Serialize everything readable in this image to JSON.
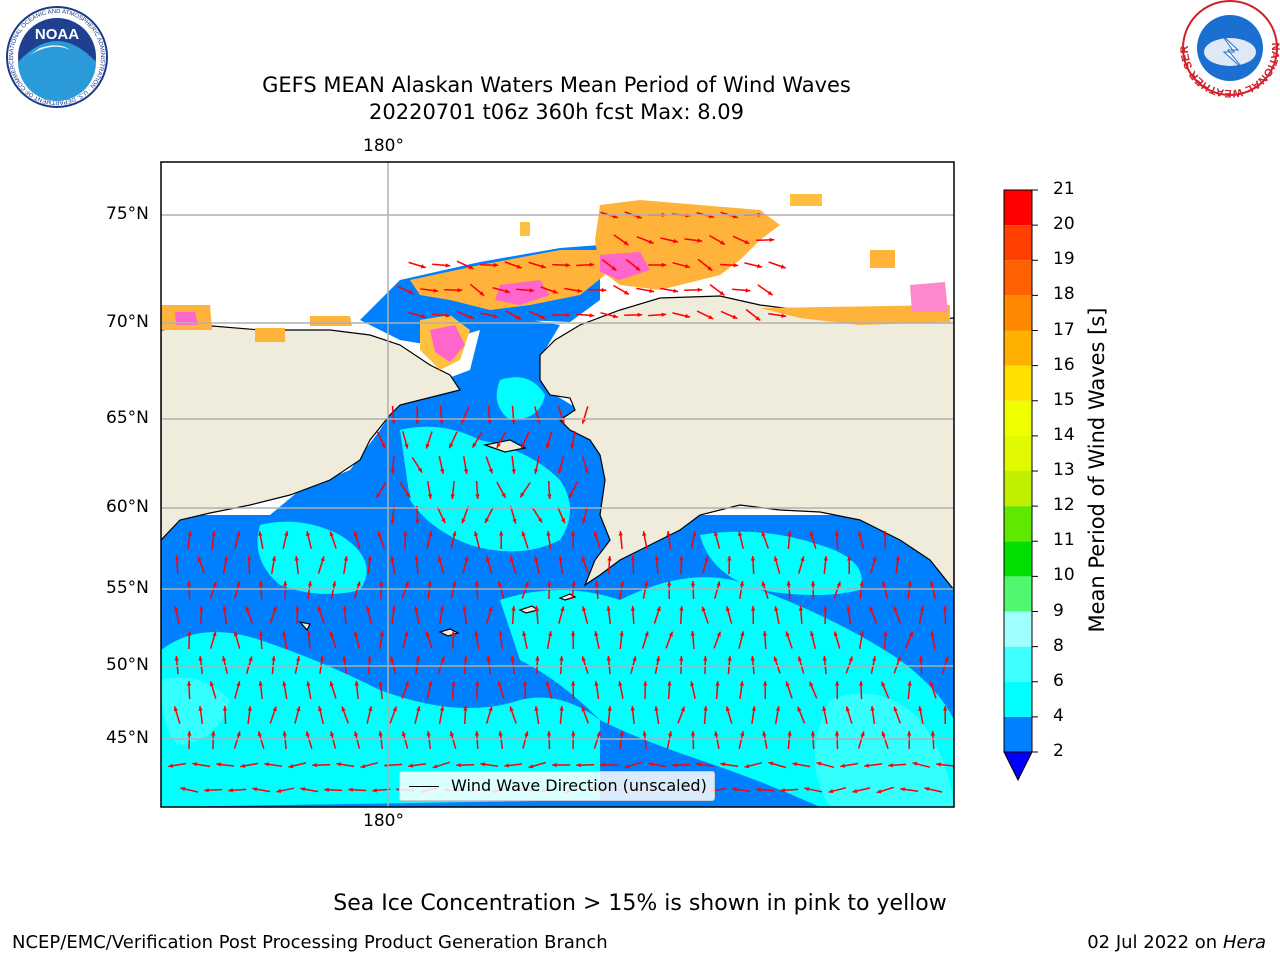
{
  "title": {
    "line1": "GEFS MEAN Alaskan Waters Mean Period of Wind Waves",
    "line2": "20220701 t06z 360h fcst   Max: 8.09"
  },
  "logos": {
    "noaa_text": "NOAA",
    "noaa_ring": "NATIONAL OCEANIC AND ATMOSPHERIC ADMINISTRATION · U.S. DEPARTMENT OF COMMERCE",
    "nws_ring": "NATIONAL WEATHER SERVICE"
  },
  "map": {
    "lon_labels": {
      "top": "180°",
      "bottom": "180°"
    },
    "lat_labels": [
      "75°N",
      "70°N",
      "65°N",
      "60°N",
      "55°N",
      "50°N",
      "45°N"
    ],
    "legend": "Wind Wave Direction (unscaled)",
    "colors": {
      "land": "#efecdb",
      "water_low": "#0080ff",
      "water_mid": "#00ffff",
      "arrow": "#ff0000",
      "ice": "#ffb020"
    }
  },
  "colorbar": {
    "label": "Mean Period of Wind Waves [s]",
    "ticks": [
      "21",
      "20",
      "19",
      "18",
      "17",
      "16",
      "15",
      "14",
      "13",
      "12",
      "11",
      "10",
      "9",
      "8",
      "6",
      "4",
      "2"
    ],
    "bins": [
      {
        "from": 2,
        "to": 4,
        "color": "#0080ff"
      },
      {
        "from": 4,
        "to": 6,
        "color": "#00ffff"
      },
      {
        "from": 6,
        "to": 8,
        "color": "#40ffff"
      },
      {
        "from": 8,
        "to": 9,
        "color": "#a0ffff"
      },
      {
        "from": 9,
        "to": 10,
        "color": "#50f870"
      },
      {
        "from": 10,
        "to": 11,
        "color": "#00e000"
      },
      {
        "from": 11,
        "to": 12,
        "color": "#60e800"
      },
      {
        "from": 12,
        "to": 13,
        "color": "#c0f000"
      },
      {
        "from": 13,
        "to": 14,
        "color": "#e0f800"
      },
      {
        "from": 14,
        "to": 15,
        "color": "#f0ff00"
      },
      {
        "from": 15,
        "to": 16,
        "color": "#ffe000"
      },
      {
        "from": 16,
        "to": 17,
        "color": "#ffb000"
      },
      {
        "from": 17,
        "to": 18,
        "color": "#ff8800"
      },
      {
        "from": 18,
        "to": 19,
        "color": "#ff6000"
      },
      {
        "from": 19,
        "to": 20,
        "color": "#ff4000"
      },
      {
        "from": 20,
        "to": 21,
        "color": "#ff0000"
      }
    ],
    "under_color": "#0000ff"
  },
  "caption": "Sea Ice Concentration > 15% is shown in pink to yellow",
  "footer": {
    "left": "NCEP/EMC/Verification Post Processing Product Generation Branch",
    "date": "02 Jul 2022 on ",
    "machine": "Hera"
  }
}
